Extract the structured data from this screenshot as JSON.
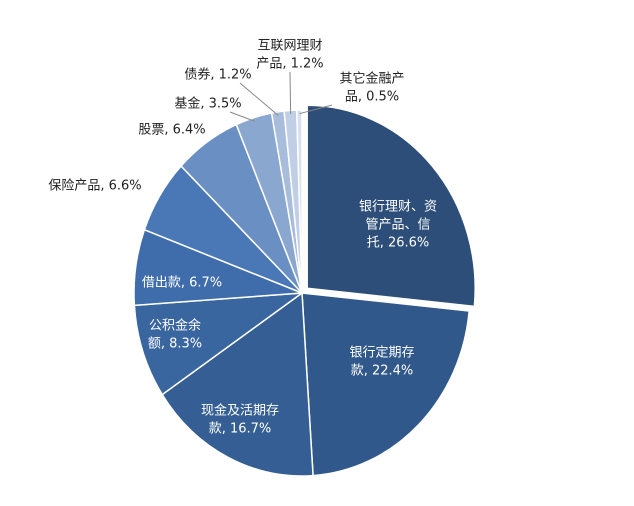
{
  "chart_data": {
    "type": "pie",
    "values": [
      26.6,
      22.4,
      16.7,
      8.3,
      6.7,
      6.6,
      6.4,
      3.5,
      1.2,
      1.2,
      0.5
    ],
    "value_labels": [
      [
        "银行理财、资",
        "管产品、信",
        "托, 26.6%"
      ],
      [
        "银行定期存",
        "款, 22.4%"
      ],
      [
        "现金及活期存",
        "款, 16.7%"
      ],
      [
        "公积金余",
        "额, 8.3%"
      ],
      [
        "借出款, 6.7%"
      ],
      [
        "保险产品, 6.6%"
      ],
      [
        "股票, 6.4%"
      ],
      [
        "基金, 3.5%"
      ],
      [
        "债券, 1.2%"
      ],
      [
        "互联网理财",
        "产品, 1.2%"
      ],
      [
        "其它金融产",
        "品, 0.5%"
      ]
    ],
    "colors": [
      "#2c4e78",
      "#30588a",
      "#355f94",
      "#3a66a0",
      "#3f6dab",
      "#4a78b6",
      "#6a8fc2",
      "#8aa7d0",
      "#a8bddc",
      "#c0cfe6",
      "#d6e0ef"
    ]
  }
}
